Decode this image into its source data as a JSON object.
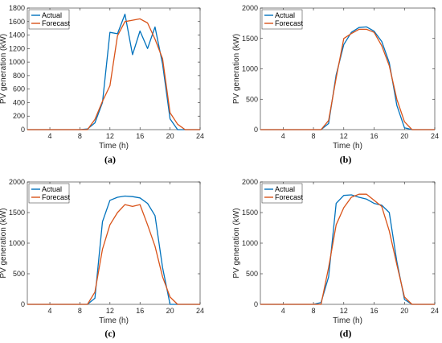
{
  "chart_data": [
    {
      "type": "line",
      "caption": "(a)",
      "xlabel": "Time (h)",
      "ylabel": "PV generation (kW)",
      "xlim": [
        1,
        24
      ],
      "ylim": [
        0,
        1800
      ],
      "xticks": [
        4,
        8,
        12,
        16,
        20,
        24
      ],
      "yticks": [
        0,
        200,
        400,
        600,
        800,
        1000,
        1200,
        1400,
        1600,
        1800
      ],
      "legend_position": "top-left",
      "series": [
        {
          "name": "Actual",
          "color": "#0072BD",
          "x": [
            1,
            2,
            3,
            4,
            5,
            6,
            7,
            8,
            9,
            10,
            11,
            12,
            13,
            14,
            15,
            16,
            17,
            18,
            19,
            20,
            21,
            22,
            23,
            24
          ],
          "y": [
            0,
            0,
            0,
            0,
            0,
            0,
            0,
            0,
            10,
            100,
            400,
            1440,
            1420,
            1710,
            1110,
            1460,
            1200,
            1520,
            970,
            160,
            0,
            0,
            0,
            0
          ]
        },
        {
          "name": "Forecast",
          "color": "#D95319",
          "x": [
            1,
            2,
            3,
            4,
            5,
            6,
            7,
            8,
            9,
            10,
            11,
            12,
            13,
            14,
            15,
            16,
            17,
            18,
            19,
            20,
            21,
            22,
            23,
            24
          ],
          "y": [
            0,
            0,
            0,
            0,
            0,
            0,
            0,
            0,
            0,
            150,
            420,
            650,
            1390,
            1600,
            1620,
            1640,
            1580,
            1340,
            1050,
            250,
            80,
            0,
            0,
            0
          ]
        }
      ]
    },
    {
      "type": "line",
      "caption": "(b)",
      "xlabel": "Time (h)",
      "ylabel": "PV generation (kW)",
      "xlim": [
        1,
        24
      ],
      "ylim": [
        0,
        2000
      ],
      "xticks": [
        4,
        8,
        12,
        16,
        20,
        24
      ],
      "yticks": [
        0,
        500,
        1000,
        1500,
        2000
      ],
      "legend_position": "top-left",
      "series": [
        {
          "name": "Actual",
          "color": "#0072BD",
          "x": [
            1,
            2,
            3,
            4,
            5,
            6,
            7,
            8,
            9,
            10,
            11,
            12,
            13,
            14,
            15,
            16,
            17,
            18,
            19,
            20,
            21,
            22,
            23,
            24
          ],
          "y": [
            0,
            0,
            0,
            0,
            0,
            0,
            0,
            0,
            0,
            100,
            900,
            1400,
            1600,
            1680,
            1690,
            1620,
            1450,
            1100,
            400,
            30,
            0,
            0,
            0,
            0
          ]
        },
        {
          "name": "Forecast",
          "color": "#D95319",
          "x": [
            1,
            2,
            3,
            4,
            5,
            6,
            7,
            8,
            9,
            10,
            11,
            12,
            13,
            14,
            15,
            16,
            17,
            18,
            19,
            20,
            21,
            22,
            23,
            24
          ],
          "y": [
            0,
            0,
            0,
            0,
            0,
            0,
            0,
            0,
            0,
            150,
            850,
            1500,
            1580,
            1650,
            1650,
            1600,
            1380,
            1050,
            500,
            130,
            0,
            0,
            0,
            0
          ]
        }
      ]
    },
    {
      "type": "line",
      "caption": "(c)",
      "xlabel": "Time (h)",
      "ylabel": "PV generation (kW)",
      "xlim": [
        1,
        24
      ],
      "ylim": [
        0,
        2000
      ],
      "xticks": [
        4,
        8,
        12,
        16,
        20,
        24
      ],
      "yticks": [
        0,
        500,
        1000,
        1500,
        2000
      ],
      "legend_position": "top-left",
      "series": [
        {
          "name": "Actual",
          "color": "#0072BD",
          "x": [
            1,
            2,
            3,
            4,
            5,
            6,
            7,
            8,
            9,
            10,
            11,
            12,
            13,
            14,
            15,
            16,
            17,
            18,
            19,
            20,
            21,
            22,
            23,
            24
          ],
          "y": [
            0,
            0,
            0,
            0,
            0,
            0,
            0,
            0,
            0,
            100,
            1350,
            1700,
            1750,
            1770,
            1760,
            1740,
            1650,
            1450,
            600,
            0,
            0,
            0,
            0,
            0
          ]
        },
        {
          "name": "Forecast",
          "color": "#D95319",
          "x": [
            1,
            2,
            3,
            4,
            5,
            6,
            7,
            8,
            9,
            10,
            11,
            12,
            13,
            14,
            15,
            16,
            17,
            18,
            19,
            20,
            21,
            22,
            23,
            24
          ],
          "y": [
            0,
            0,
            0,
            0,
            0,
            0,
            0,
            0,
            0,
            200,
            900,
            1300,
            1500,
            1630,
            1600,
            1630,
            1300,
            950,
            450,
            120,
            0,
            0,
            0,
            0
          ]
        }
      ]
    },
    {
      "type": "line",
      "caption": "(d)",
      "xlabel": "Time (h)",
      "ylabel": "PV generation (kW)",
      "xlim": [
        1,
        24
      ],
      "ylim": [
        0,
        2000
      ],
      "xticks": [
        4,
        8,
        12,
        16,
        20,
        24
      ],
      "yticks": [
        0,
        500,
        1000,
        1500,
        2000
      ],
      "legend_position": "top-left",
      "series": [
        {
          "name": "Actual",
          "color": "#0072BD",
          "x": [
            1,
            2,
            3,
            4,
            5,
            6,
            7,
            8,
            9,
            10,
            11,
            12,
            13,
            14,
            15,
            16,
            17,
            18,
            19,
            20,
            21,
            22,
            23,
            24
          ],
          "y": [
            0,
            0,
            0,
            0,
            0,
            0,
            0,
            0,
            30,
            450,
            1650,
            1780,
            1790,
            1750,
            1720,
            1650,
            1620,
            1500,
            700,
            80,
            0,
            0,
            0,
            0
          ]
        },
        {
          "name": "Forecast",
          "color": "#D95319",
          "x": [
            1,
            2,
            3,
            4,
            5,
            6,
            7,
            8,
            9,
            10,
            11,
            12,
            13,
            14,
            15,
            16,
            17,
            18,
            19,
            20,
            21,
            22,
            23,
            24
          ],
          "y": [
            0,
            0,
            0,
            0,
            0,
            0,
            0,
            0,
            0,
            600,
            1300,
            1580,
            1750,
            1800,
            1800,
            1700,
            1600,
            1200,
            650,
            120,
            0,
            0,
            0,
            0
          ]
        }
      ]
    }
  ]
}
